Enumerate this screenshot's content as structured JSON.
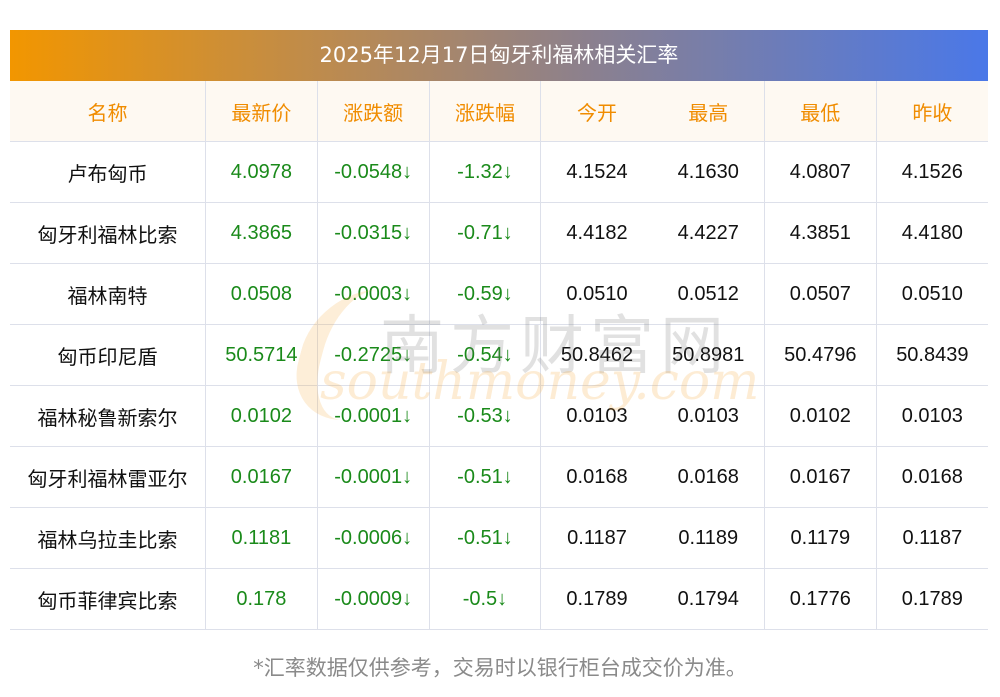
{
  "title": "2025年12月17日匈牙利福林相关汇率",
  "headers": [
    "名称",
    "最新价",
    "涨跌额",
    "涨跌幅",
    "今开",
    "最高",
    "最低",
    "昨收"
  ],
  "rows": [
    {
      "name": "卢布匈币",
      "latest": "4.0978",
      "change": "-0.0548↓",
      "pct": "-1.32↓",
      "open": "4.1524",
      "high": "4.1630",
      "low": "4.0807",
      "prev": "4.1526"
    },
    {
      "name": "匈牙利福林比索",
      "latest": "4.3865",
      "change": "-0.0315↓",
      "pct": "-0.71↓",
      "open": "4.4182",
      "high": "4.4227",
      "low": "4.3851",
      "prev": "4.4180"
    },
    {
      "name": "福林南特",
      "latest": "0.0508",
      "change": "-0.0003↓",
      "pct": "-0.59↓",
      "open": "0.0510",
      "high": "0.0512",
      "low": "0.0507",
      "prev": "0.0510"
    },
    {
      "name": "匈币印尼盾",
      "latest": "50.5714",
      "change": "-0.2725↓",
      "pct": "-0.54↓",
      "open": "50.8462",
      "high": "50.8981",
      "low": "50.4796",
      "prev": "50.8439"
    },
    {
      "name": "福林秘鲁新索尔",
      "latest": "0.0102",
      "change": "-0.0001↓",
      "pct": "-0.53↓",
      "open": "0.0103",
      "high": "0.0103",
      "low": "0.0102",
      "prev": "0.0103"
    },
    {
      "name": "匈牙利福林雷亚尔",
      "latest": "0.0167",
      "change": "-0.0001↓",
      "pct": "-0.51↓",
      "open": "0.0168",
      "high": "0.0168",
      "low": "0.0167",
      "prev": "0.0168"
    },
    {
      "name": "福林乌拉圭比索",
      "latest": "0.1181",
      "change": "-0.0006↓",
      "pct": "-0.51↓",
      "open": "0.1187",
      "high": "0.1189",
      "low": "0.1179",
      "prev": "0.1187"
    },
    {
      "name": "匈币菲律宾比索",
      "latest": "0.178",
      "change": "-0.0009↓",
      "pct": "-0.5↓",
      "open": "0.1789",
      "high": "0.1794",
      "low": "0.1776",
      "prev": "0.1789"
    }
  ],
  "watermark": {
    "cn": "南方财富网",
    "en": "southmoney.com"
  },
  "footnote": "*汇率数据仅供参考，交易时以银行柜台成交价为准。",
  "colors": {
    "header_text": "#f08c00",
    "down": "#1a8a1a",
    "title_start": "#f29600",
    "title_end": "#4a78e8"
  }
}
